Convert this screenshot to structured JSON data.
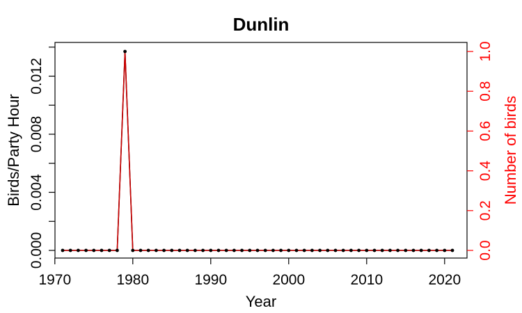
{
  "chart_data": {
    "type": "line",
    "title": "Dunlin",
    "xlabel": "Year",
    "ylabel": "Birds/Party Hour",
    "y2label": "Number of birds",
    "xlim": [
      1970,
      2022
    ],
    "ylim": [
      0,
      0.014
    ],
    "y2lim": [
      0,
      1
    ],
    "x_ticks": [
      1970,
      1980,
      1990,
      2000,
      2010,
      2020
    ],
    "x_tick_labels": [
      "1970",
      "1980",
      "1990",
      "2000",
      "2010",
      "2020"
    ],
    "y_ticks": [
      0,
      0.002,
      0.004,
      0.006,
      0.008,
      0.01,
      0.012,
      0.014
    ],
    "y_tick_labels": [
      "0.000",
      "",
      "0.004",
      "",
      "0.008",
      "",
      "0.012",
      ""
    ],
    "y2_ticks": [
      0,
      0.2,
      0.4,
      0.6,
      0.8,
      1.0
    ],
    "y2_tick_labels": [
      "0.0",
      "0.2",
      "0.4",
      "0.6",
      "0.8",
      "1.0"
    ],
    "grid": false,
    "colors": {
      "primary": "#000000",
      "secondary": "#ff0000",
      "secondary_line": "#cc0000"
    },
    "series": [
      {
        "axis": "left",
        "x": [
          1971,
          1972,
          1973,
          1974,
          1975,
          1976,
          1977,
          1978,
          1979,
          1980,
          1981,
          1982,
          1983,
          1984,
          1985,
          1986,
          1987,
          1988,
          1989,
          1990,
          1991,
          1992,
          1993,
          1994,
          1995,
          1996,
          1997,
          1998,
          1999,
          2000,
          2001,
          2002,
          2003,
          2004,
          2005,
          2006,
          2007,
          2008,
          2009,
          2010,
          2011,
          2012,
          2013,
          2014,
          2015,
          2016,
          2017,
          2018,
          2019,
          2020,
          2021
        ],
        "values": [
          0,
          0,
          0,
          0,
          0,
          0,
          0,
          0,
          0.0137,
          0,
          0,
          0,
          0,
          0,
          0,
          0,
          0,
          0,
          0,
          0,
          0,
          0,
          0,
          0,
          0,
          0,
          0,
          0,
          0,
          0,
          0,
          0,
          0,
          0,
          0,
          0,
          0,
          0,
          0,
          0,
          0,
          0,
          0,
          0,
          0,
          0,
          0,
          0,
          0,
          0,
          0
        ]
      },
      {
        "axis": "right",
        "x": [
          1971,
          1972,
          1973,
          1974,
          1975,
          1976,
          1977,
          1978,
          1979,
          1980,
          1981,
          1982,
          1983,
          1984,
          1985,
          1986,
          1987,
          1988,
          1989,
          1990,
          1991,
          1992,
          1993,
          1994,
          1995,
          1996,
          1997,
          1998,
          1999,
          2000,
          2001,
          2002,
          2003,
          2004,
          2005,
          2006,
          2007,
          2008,
          2009,
          2010,
          2011,
          2012,
          2013,
          2014,
          2015,
          2016,
          2017,
          2018,
          2019,
          2020,
          2021
        ],
        "values": [
          0,
          0,
          0,
          0,
          0,
          0,
          0,
          0,
          1,
          0,
          0,
          0,
          0,
          0,
          0,
          0,
          0,
          0,
          0,
          0,
          0,
          0,
          0,
          0,
          0,
          0,
          0,
          0,
          0,
          0,
          0,
          0,
          0,
          0,
          0,
          0,
          0,
          0,
          0,
          0,
          0,
          0,
          0,
          0,
          0,
          0,
          0,
          0,
          0,
          0,
          0
        ]
      }
    ]
  }
}
